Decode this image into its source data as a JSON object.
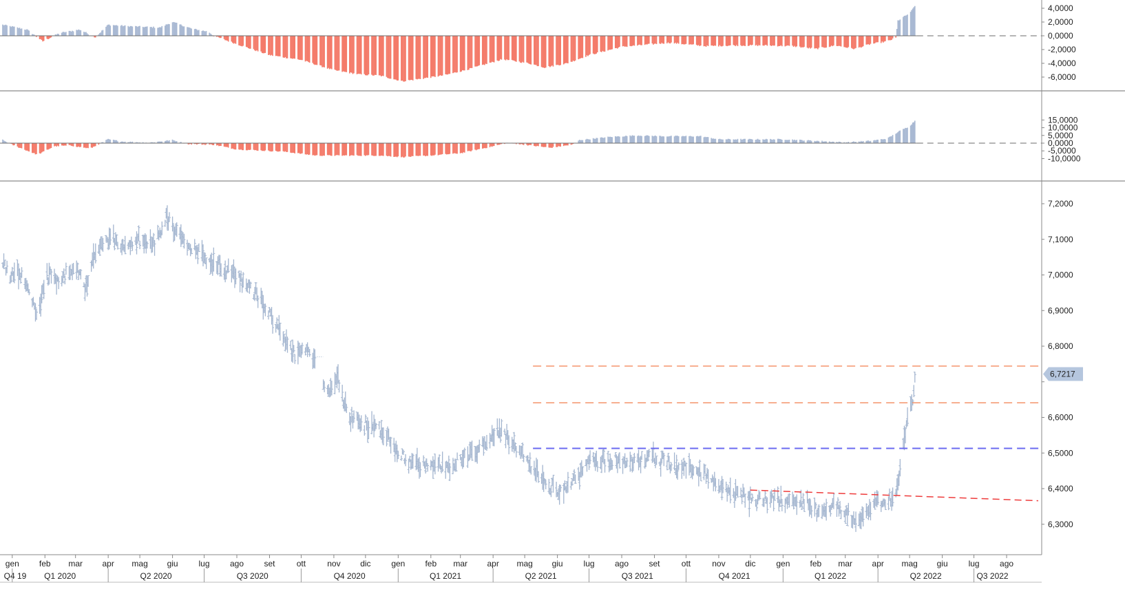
{
  "colors": {
    "bar_positive": "#a9b9d3",
    "bar_negative": "#f47b6a",
    "price": "#a3b5cf",
    "axis": "#888888",
    "separator": "#8a8a8a",
    "zero_line": "#888888",
    "level_orange": "#f38a5e",
    "level_blue": "#6a6af0",
    "trend_red": "#ee3b3b",
    "badge_bg": "#b5c6de"
  },
  "chart_data": [
    {
      "type": "bar",
      "panel": "oscillator-top",
      "ylim": [
        -7,
        4.6
      ],
      "yticks": [
        "4,0000",
        "2,0000",
        "0,0000",
        "-2,0000",
        "-4,0000",
        "-6,0000"
      ],
      "ytick_values": [
        4,
        2,
        0,
        -2,
        -4,
        -6
      ],
      "x_range": [
        "2019-12-23",
        "2022-05-06"
      ],
      "bar_style": "histogram, blue above zero, red below zero",
      "keypoints": [
        [
          "2019-12-23",
          1.6
        ],
        [
          "2020-01-15",
          0.9
        ],
        [
          "2020-01-30",
          -0.8
        ],
        [
          "2020-02-15",
          0.4
        ],
        [
          "2020-03-05",
          0.9
        ],
        [
          "2020-03-20",
          -0.2
        ],
        [
          "2020-04-01",
          1.6
        ],
        [
          "2020-04-20",
          1.4
        ],
        [
          "2020-05-20",
          1.2
        ],
        [
          "2020-06-01",
          2.0
        ],
        [
          "2020-06-20",
          1.0
        ],
        [
          "2020-07-05",
          0.6
        ],
        [
          "2020-07-10",
          0.0
        ],
        [
          "2020-08-01",
          -1.2
        ],
        [
          "2020-09-01",
          -2.8
        ],
        [
          "2020-10-01",
          -3.5
        ],
        [
          "2020-11-01",
          -5.0
        ],
        [
          "2020-11-25",
          -5.6
        ],
        [
          "2020-12-15",
          -5.8
        ],
        [
          "2021-01-05",
          -6.6
        ],
        [
          "2021-01-20",
          -6.3
        ],
        [
          "2021-02-15",
          -5.7
        ],
        [
          "2021-03-10",
          -4.8
        ],
        [
          "2021-04-10",
          -3.4
        ],
        [
          "2021-05-05",
          -4.0
        ],
        [
          "2021-05-20",
          -4.6
        ],
        [
          "2021-06-10",
          -4.0
        ],
        [
          "2021-07-01",
          -2.8
        ],
        [
          "2021-08-01",
          -1.6
        ],
        [
          "2021-09-15",
          -1.0
        ],
        [
          "2021-10-20",
          -1.5
        ],
        [
          "2021-11-15",
          -1.4
        ],
        [
          "2021-12-15",
          -1.4
        ],
        [
          "2022-01-10",
          -1.5
        ],
        [
          "2022-02-01",
          -1.9
        ],
        [
          "2022-02-20",
          -1.4
        ],
        [
          "2022-03-10",
          -1.9
        ],
        [
          "2022-03-25",
          -1.2
        ],
        [
          "2022-04-10",
          -0.8
        ],
        [
          "2022-04-18",
          -0.3
        ],
        [
          "2022-04-20",
          2.2
        ],
        [
          "2022-04-26",
          2.8
        ],
        [
          "2022-05-02",
          3.4
        ],
        [
          "2022-05-06",
          4.4
        ]
      ]
    },
    {
      "type": "bar",
      "panel": "oscillator-middle",
      "ylim": [
        -11.5,
        15.5
      ],
      "yticks": [
        "15,0000",
        "10,0000",
        "5,0000",
        "0,0000",
        "-5,0000",
        "-10,0000"
      ],
      "ytick_values": [
        15,
        10,
        5,
        0,
        -5,
        -10
      ],
      "x_range": [
        "2019-12-23",
        "2022-05-06"
      ],
      "bar_style": "histogram, blue above zero, red below zero",
      "keypoints": [
        [
          "2019-12-23",
          2.0
        ],
        [
          "2020-01-01",
          -1.0
        ],
        [
          "2020-01-25",
          -7.5
        ],
        [
          "2020-02-10",
          -2.0
        ],
        [
          "2020-02-25",
          -1.5
        ],
        [
          "2020-03-15",
          -3.5
        ],
        [
          "2020-03-25",
          0.0
        ],
        [
          "2020-04-01",
          2.5
        ],
        [
          "2020-04-15",
          1.0
        ],
        [
          "2020-05-10",
          0.3
        ],
        [
          "2020-06-01",
          2.0
        ],
        [
          "2020-06-15",
          -0.5
        ],
        [
          "2020-07-10",
          -1.0
        ],
        [
          "2020-08-01",
          -4.0
        ],
        [
          "2020-09-15",
          -5.5
        ],
        [
          "2020-10-15",
          -8.0
        ],
        [
          "2020-11-15",
          -8.0
        ],
        [
          "2020-12-15",
          -8.0
        ],
        [
          "2021-01-05",
          -9.0
        ],
        [
          "2021-02-01",
          -8.0
        ],
        [
          "2021-03-01",
          -6.5
        ],
        [
          "2021-04-01",
          -2.0
        ],
        [
          "2021-04-15",
          0.3
        ],
        [
          "2021-05-01",
          -1.0
        ],
        [
          "2021-05-25",
          -3.0
        ],
        [
          "2021-06-15",
          -1.0
        ],
        [
          "2021-06-22",
          2.0
        ],
        [
          "2021-07-20",
          4.0
        ],
        [
          "2021-08-15",
          5.0
        ],
        [
          "2021-09-10",
          4.5
        ],
        [
          "2021-10-15",
          4.5
        ],
        [
          "2021-11-01",
          2.5
        ],
        [
          "2021-12-01",
          2.5
        ],
        [
          "2022-01-01",
          2.5
        ],
        [
          "2022-02-01",
          1.5
        ],
        [
          "2022-03-01",
          0.5
        ],
        [
          "2022-03-25",
          1.5
        ],
        [
          "2022-04-10",
          3.0
        ],
        [
          "2022-04-22",
          8.0
        ],
        [
          "2022-05-01",
          11.0
        ],
        [
          "2022-05-06",
          14.5
        ]
      ]
    },
    {
      "type": "ohlc",
      "panel": "price",
      "ylim": [
        6.22,
        7.28
      ],
      "yticks": [
        "7,2000",
        "7,1000",
        "7,0000",
        "6,9000",
        "6,8000",
        "6,7000",
        "6,6000",
        "6,5000",
        "6,4000",
        "6,3000"
      ],
      "ytick_values": [
        7.2,
        7.1,
        7.0,
        6.9,
        6.8,
        6.7,
        6.6,
        6.5,
        6.4,
        6.3
      ],
      "last_value_label": "6,7217",
      "last_value": 6.7217,
      "x_range": [
        "2019-12-23",
        "2022-08-31"
      ],
      "keypoints": [
        [
          "2019-12-23",
          7.04
        ],
        [
          "2019-12-30",
          7.0
        ],
        [
          "2020-01-10",
          7.0
        ],
        [
          "2020-01-25",
          6.88
        ],
        [
          "2020-02-03",
          7.0
        ],
        [
          "2020-02-15",
          6.98
        ],
        [
          "2020-03-01",
          7.03
        ],
        [
          "2020-03-10",
          6.95
        ],
        [
          "2020-03-20",
          7.07
        ],
        [
          "2020-04-01",
          7.1
        ],
        [
          "2020-04-15",
          7.08
        ],
        [
          "2020-05-01",
          7.1
        ],
        [
          "2020-05-15",
          7.09
        ],
        [
          "2020-05-27",
          7.16
        ],
        [
          "2020-06-10",
          7.1
        ],
        [
          "2020-07-01",
          7.05
        ],
        [
          "2020-08-01",
          7.0
        ],
        [
          "2020-08-20",
          6.94
        ],
        [
          "2020-09-10",
          6.85
        ],
        [
          "2020-09-25",
          6.77
        ],
        [
          "2020-10-08",
          6.78
        ],
        [
          "2020-10-13",
          6.76
        ],
        [
          "2020-10-25",
          6.67
        ],
        [
          "2020-11-05",
          6.7
        ],
        [
          "2020-11-15",
          6.6
        ],
        [
          "2020-12-01",
          6.58
        ],
        [
          "2020-12-20",
          6.55
        ],
        [
          "2021-01-05",
          6.49
        ],
        [
          "2021-01-20",
          6.47
        ],
        [
          "2021-02-10",
          6.46
        ],
        [
          "2021-03-01",
          6.48
        ],
        [
          "2021-03-20",
          6.52
        ],
        [
          "2021-04-05",
          6.56
        ],
        [
          "2021-04-20",
          6.53
        ],
        [
          "2021-05-05",
          6.47
        ],
        [
          "2021-05-20",
          6.42
        ],
        [
          "2021-06-01",
          6.39
        ],
        [
          "2021-06-15",
          6.42
        ],
        [
          "2021-07-01",
          6.47
        ],
        [
          "2021-07-20",
          6.48
        ],
        [
          "2021-08-10",
          6.48
        ],
        [
          "2021-09-01",
          6.49
        ],
        [
          "2021-09-20",
          6.46
        ],
        [
          "2021-10-10",
          6.46
        ],
        [
          "2021-10-25",
          6.43
        ],
        [
          "2021-11-10",
          6.39
        ],
        [
          "2021-12-01",
          6.37
        ],
        [
          "2021-12-20",
          6.37
        ],
        [
          "2022-01-10",
          6.37
        ],
        [
          "2022-01-25",
          6.36
        ],
        [
          "2022-02-05",
          6.33
        ],
        [
          "2022-02-20",
          6.35
        ],
        [
          "2022-03-05",
          6.32
        ],
        [
          "2022-03-15",
          6.31
        ],
        [
          "2022-03-28",
          6.37
        ],
        [
          "2022-04-10",
          6.36
        ],
        [
          "2022-04-18",
          6.38
        ],
        [
          "2022-04-21",
          6.43
        ],
        [
          "2022-04-26",
          6.54
        ],
        [
          "2022-04-29",
          6.62
        ],
        [
          "2022-05-04",
          6.64
        ],
        [
          "2022-05-06",
          6.72
        ]
      ],
      "horizontal_levels": [
        {
          "value": 6.744,
          "start": "2021-05-01",
          "color": "orange",
          "style": "dashed"
        },
        {
          "value": 6.641,
          "start": "2021-05-01",
          "color": "orange",
          "style": "dashed"
        },
        {
          "value": 6.513,
          "start": "2021-05-01",
          "color": "blue",
          "style": "dashed"
        }
      ],
      "trend_line": {
        "from": [
          "2021-12-01",
          6.396
        ],
        "to": [
          "2022-08-31",
          6.366
        ],
        "color": "red",
        "style": "dashed"
      }
    }
  ],
  "x_axis": {
    "months": [
      {
        "label": "gen",
        "date": "2020-01-01"
      },
      {
        "label": "feb",
        "date": "2020-02-01"
      },
      {
        "label": "mar",
        "date": "2020-03-01"
      },
      {
        "label": "apr",
        "date": "2020-04-01"
      },
      {
        "label": "mag",
        "date": "2020-05-01"
      },
      {
        "label": "giu",
        "date": "2020-06-01"
      },
      {
        "label": "lug",
        "date": "2020-07-01"
      },
      {
        "label": "ago",
        "date": "2020-08-01"
      },
      {
        "label": "set",
        "date": "2020-09-01"
      },
      {
        "label": "ott",
        "date": "2020-10-01"
      },
      {
        "label": "nov",
        "date": "2020-11-01"
      },
      {
        "label": "dic",
        "date": "2020-12-01"
      },
      {
        "label": "gen",
        "date": "2021-01-01"
      },
      {
        "label": "feb",
        "date": "2021-02-01"
      },
      {
        "label": "mar",
        "date": "2021-03-01"
      },
      {
        "label": "apr",
        "date": "2021-04-01"
      },
      {
        "label": "mag",
        "date": "2021-05-01"
      },
      {
        "label": "giu",
        "date": "2021-06-01"
      },
      {
        "label": "lug",
        "date": "2021-07-01"
      },
      {
        "label": "ago",
        "date": "2021-08-01"
      },
      {
        "label": "set",
        "date": "2021-09-01"
      },
      {
        "label": "ott",
        "date": "2021-10-01"
      },
      {
        "label": "nov",
        "date": "2021-11-01"
      },
      {
        "label": "dic",
        "date": "2021-12-01"
      },
      {
        "label": "gen",
        "date": "2022-01-01"
      },
      {
        "label": "feb",
        "date": "2022-02-01"
      },
      {
        "label": "mar",
        "date": "2022-03-01"
      },
      {
        "label": "apr",
        "date": "2022-04-01"
      },
      {
        "label": "mag",
        "date": "2022-05-01"
      },
      {
        "label": "giu",
        "date": "2022-06-01"
      },
      {
        "label": "lug",
        "date": "2022-07-01"
      },
      {
        "label": "ago",
        "date": "2022-08-01"
      }
    ],
    "quarters": [
      {
        "label": "Q4 19",
        "start": "2019-10-01",
        "end": "2019-12-31"
      },
      {
        "label": "Q1 2020",
        "start": "2020-01-01",
        "end": "2020-03-31"
      },
      {
        "label": "Q2 2020",
        "start": "2020-04-01",
        "end": "2020-06-30"
      },
      {
        "label": "Q3 2020",
        "start": "2020-07-01",
        "end": "2020-09-30"
      },
      {
        "label": "Q4 2020",
        "start": "2020-10-01",
        "end": "2020-12-31"
      },
      {
        "label": "Q1 2021",
        "start": "2021-01-01",
        "end": "2021-03-31"
      },
      {
        "label": "Q2 2021",
        "start": "2021-04-01",
        "end": "2021-06-30"
      },
      {
        "label": "Q3 2021",
        "start": "2021-07-01",
        "end": "2021-09-30"
      },
      {
        "label": "Q4 2021",
        "start": "2021-10-01",
        "end": "2021-12-31"
      },
      {
        "label": "Q1 2022",
        "start": "2022-01-01",
        "end": "2022-03-31"
      },
      {
        "label": "Q2 2022",
        "start": "2022-04-01",
        "end": "2022-06-30"
      },
      {
        "label": "Q3 2022",
        "start": "2022-07-01",
        "end": "2022-09-30"
      }
    ]
  }
}
